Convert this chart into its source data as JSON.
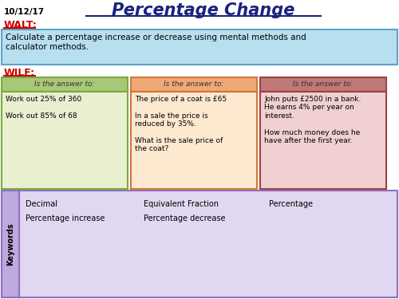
{
  "date": "10/12/17",
  "title": "Percentage Change",
  "walt_label": "WALT:",
  "walt_text": "Calculate a percentage increase or decrease using mental methods and\ncalculator methods.",
  "wilf_label": "WILF:",
  "col1_header": "Is the answer to:",
  "col2_header": "Is the answer to:",
  "col3_header": "Is the answer to:",
  "col1_body": "Work out 25% of 360\n\nWork out 85% of 68",
  "col2_body": "The price of a coat is £65\n\nIn a sale the price is\nreduced by 35%.\n\nWhat is the sale price of\nthe coat?",
  "col3_body": "John puts £2500 in a bank.\nHe earns 4% per year on\ninterest.\n\nHow much money does he\nhave after the first year.",
  "keywords_label": "Keywords",
  "keywords": [
    "Decimal",
    "Equivalent Fraction",
    "Percentage",
    "Percentage increase",
    "Percentage decrease"
  ],
  "bg_color": "#ffffff",
  "walt_box_color": "#b8dff0",
  "walt_box_border": "#5ba3c9",
  "col1_header_color": "#a8c878",
  "col1_body_color": "#e8f0d0",
  "col1_border_color": "#7aaa40",
  "col2_header_color": "#f0a878",
  "col2_body_color": "#fde8d0",
  "col2_border_color": "#d07830",
  "col3_header_color": "#c07878",
  "col3_body_color": "#f0d0d0",
  "col3_border_color": "#a04040",
  "keywords_box_color": "#e0d8f0",
  "keywords_sidebar_color": "#c0a8e0",
  "keywords_border_color": "#9070c0",
  "title_color": "#1a237e",
  "walt_color": "#cc0000",
  "wilf_color": "#cc0000",
  "date_color": "#000000",
  "body_text_color": "#000000",
  "header_text_color": "#333333"
}
